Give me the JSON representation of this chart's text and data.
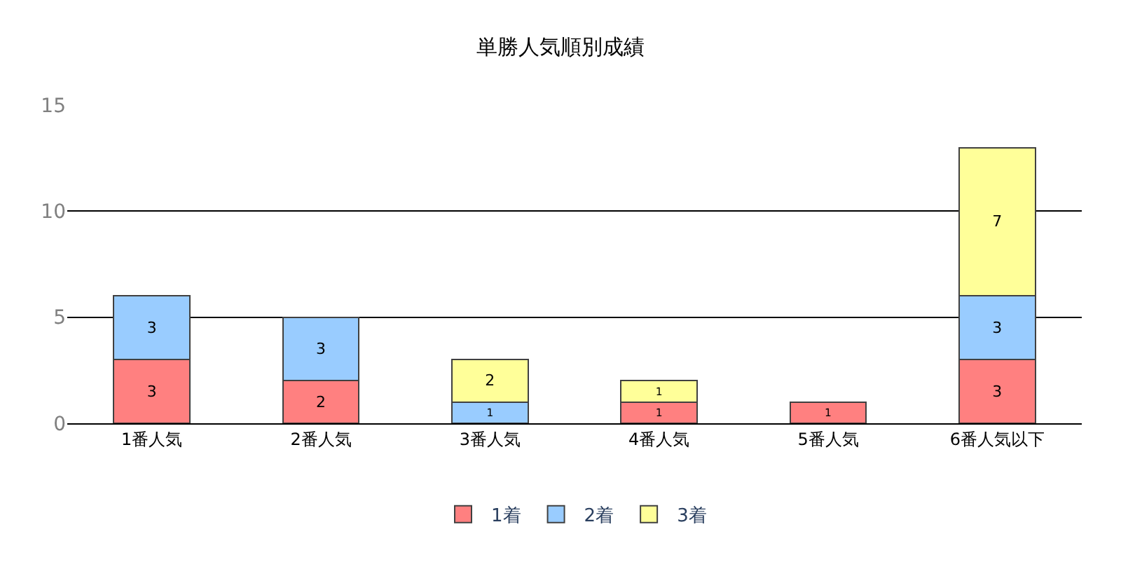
{
  "chart_data": {
    "type": "bar",
    "title": "単勝人気順別成績",
    "categories": [
      "1番人気",
      "2番人気",
      "3番人気",
      "4番人気",
      "5番人気",
      "6番人気以下"
    ],
    "series": [
      {
        "name": "1着",
        "color": "#ff8080",
        "values": [
          3,
          2,
          null,
          1,
          1,
          3
        ]
      },
      {
        "name": "2着",
        "color": "#99ccff",
        "values": [
          3,
          3,
          1,
          null,
          null,
          3
        ]
      },
      {
        "name": "3着",
        "color": "#ffff99",
        "values": [
          null,
          null,
          2,
          1,
          null,
          7
        ]
      }
    ],
    "stacked": true,
    "data_labels": true,
    "ylim": [
      0,
      15
    ],
    "yticks": [
      0,
      5,
      10,
      15
    ],
    "grid": "y",
    "legend": "bottom"
  }
}
